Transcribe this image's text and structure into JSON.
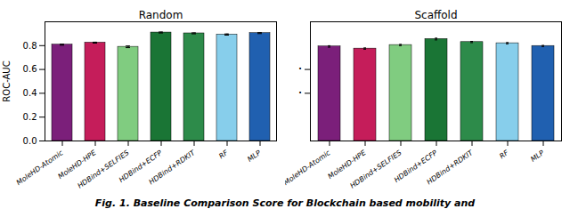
{
  "chart_data": [
    {
      "type": "bar",
      "title": "Random",
      "ylabel": "ROC-AUC",
      "categories": [
        "MoleHD-Atomic",
        "MoleHD-HPE",
        "HDBind+SELFIES",
        "HDBind+ECFP",
        "HDBind+RDKIT",
        "RF",
        "MLP"
      ],
      "values": [
        0.808,
        0.825,
        0.79,
        0.91,
        0.903,
        0.893,
        0.905
      ],
      "errors": [
        0.005,
        0.004,
        0.007,
        0.004,
        0.004,
        0.005,
        0.004
      ],
      "colors": [
        "#7B1F7A",
        "#C51D5A",
        "#80CC80",
        "#1A7535",
        "#2D8B4A",
        "#87CEEB",
        "#2060B0"
      ],
      "ylim": [
        0.0,
        1.0
      ],
      "yticks": [
        {
          "value": 0,
          "label": "0.0"
        },
        0.2,
        0.4,
        0.6,
        0.8
      ],
      "grid": false
    },
    {
      "type": "bar",
      "title": "Scaffold",
      "categories": [
        "MoleHD-Atomic",
        "MoleHD-HPE",
        "HDBind+SELFIES",
        "HDBind+ECFP",
        "HDBind+RDKIT",
        "RF",
        "MLP"
      ],
      "values": [
        0.793,
        0.775,
        0.805,
        0.855,
        0.83,
        0.82,
        0.797
      ],
      "errors": [
        0.006,
        0.005,
        0.005,
        0.007,
        0.005,
        0.005,
        0.004
      ],
      "colors": [
        "#7B1F7A",
        "#C51D5A",
        "#80CC80",
        "#1A7535",
        "#2D8B4A",
        "#87CEEB",
        "#2060B0"
      ],
      "ylim": [
        0.0,
        1.0
      ],
      "yticks": [
        {
          "value": 0.4,
          "label": "·"
        },
        {
          "value": 0.6,
          "label": "·"
        }
      ],
      "grid": false
    }
  ],
  "caption": "Fig. 1. Baseline Comparison Score for Blockchain based mobility and"
}
